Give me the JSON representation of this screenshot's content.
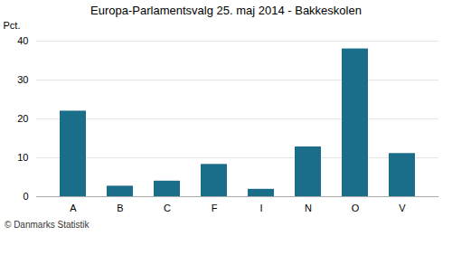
{
  "chart_data": {
    "type": "bar",
    "title": "Europa-Parlamentsvalg 25. maj 2014 - Bakkeskolen",
    "categories": [
      "A",
      "B",
      "C",
      "F",
      "I",
      "N",
      "O",
      "V"
    ],
    "values": [
      22.0,
      2.7,
      4.0,
      8.3,
      1.9,
      12.8,
      38.0,
      11.1
    ],
    "color": "#1a6e8a",
    "ylabel": "Pct.",
    "ylim": [
      0,
      40
    ],
    "yticks": [
      0,
      10,
      20,
      30,
      40
    ],
    "grid": true,
    "caption": "© Danmarks Statistik"
  }
}
